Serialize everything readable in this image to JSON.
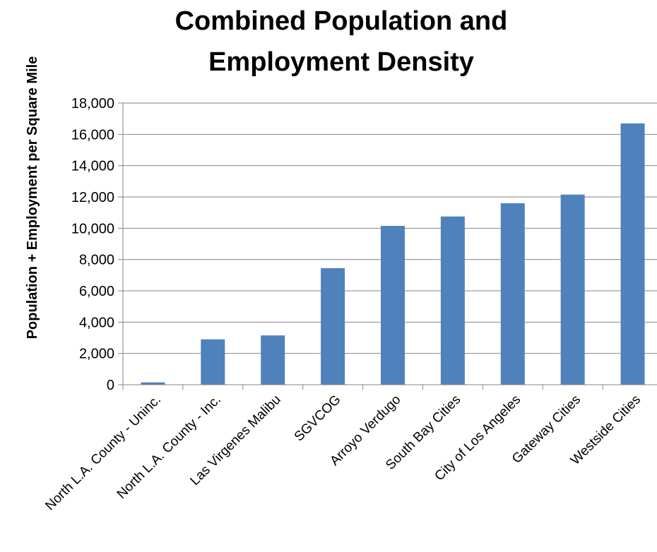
{
  "chart_data": {
    "type": "bar",
    "title_lines": [
      "Combined Population and",
      "Employment Density"
    ],
    "xlabel": "",
    "ylabel": "Population + Employment per Square Mile",
    "ylim": [
      0,
      18000
    ],
    "ytick_values": [
      0,
      2000,
      4000,
      6000,
      8000,
      10000,
      12000,
      14000,
      16000,
      18000
    ],
    "ytick_labels": [
      "0",
      "2,000",
      "4,000",
      "6,000",
      "8,000",
      "10,000",
      "12,000",
      "14,000",
      "16,000",
      "18,000"
    ],
    "grid": true,
    "categories": [
      "North L.A. County - Uninc.",
      "North L.A. County - Inc.",
      "Las Virgenes Malibu",
      "SGVCOG",
      "Arroyo Verdugo",
      "South Bay Cities",
      "City of Los Angeles",
      "Gateway Cities",
      "Westside Cities"
    ],
    "values": [
      150,
      2900,
      3150,
      7450,
      10150,
      10750,
      11600,
      12150,
      16700
    ],
    "bar_color": "#4F81BD",
    "grid_color": "#868686"
  }
}
